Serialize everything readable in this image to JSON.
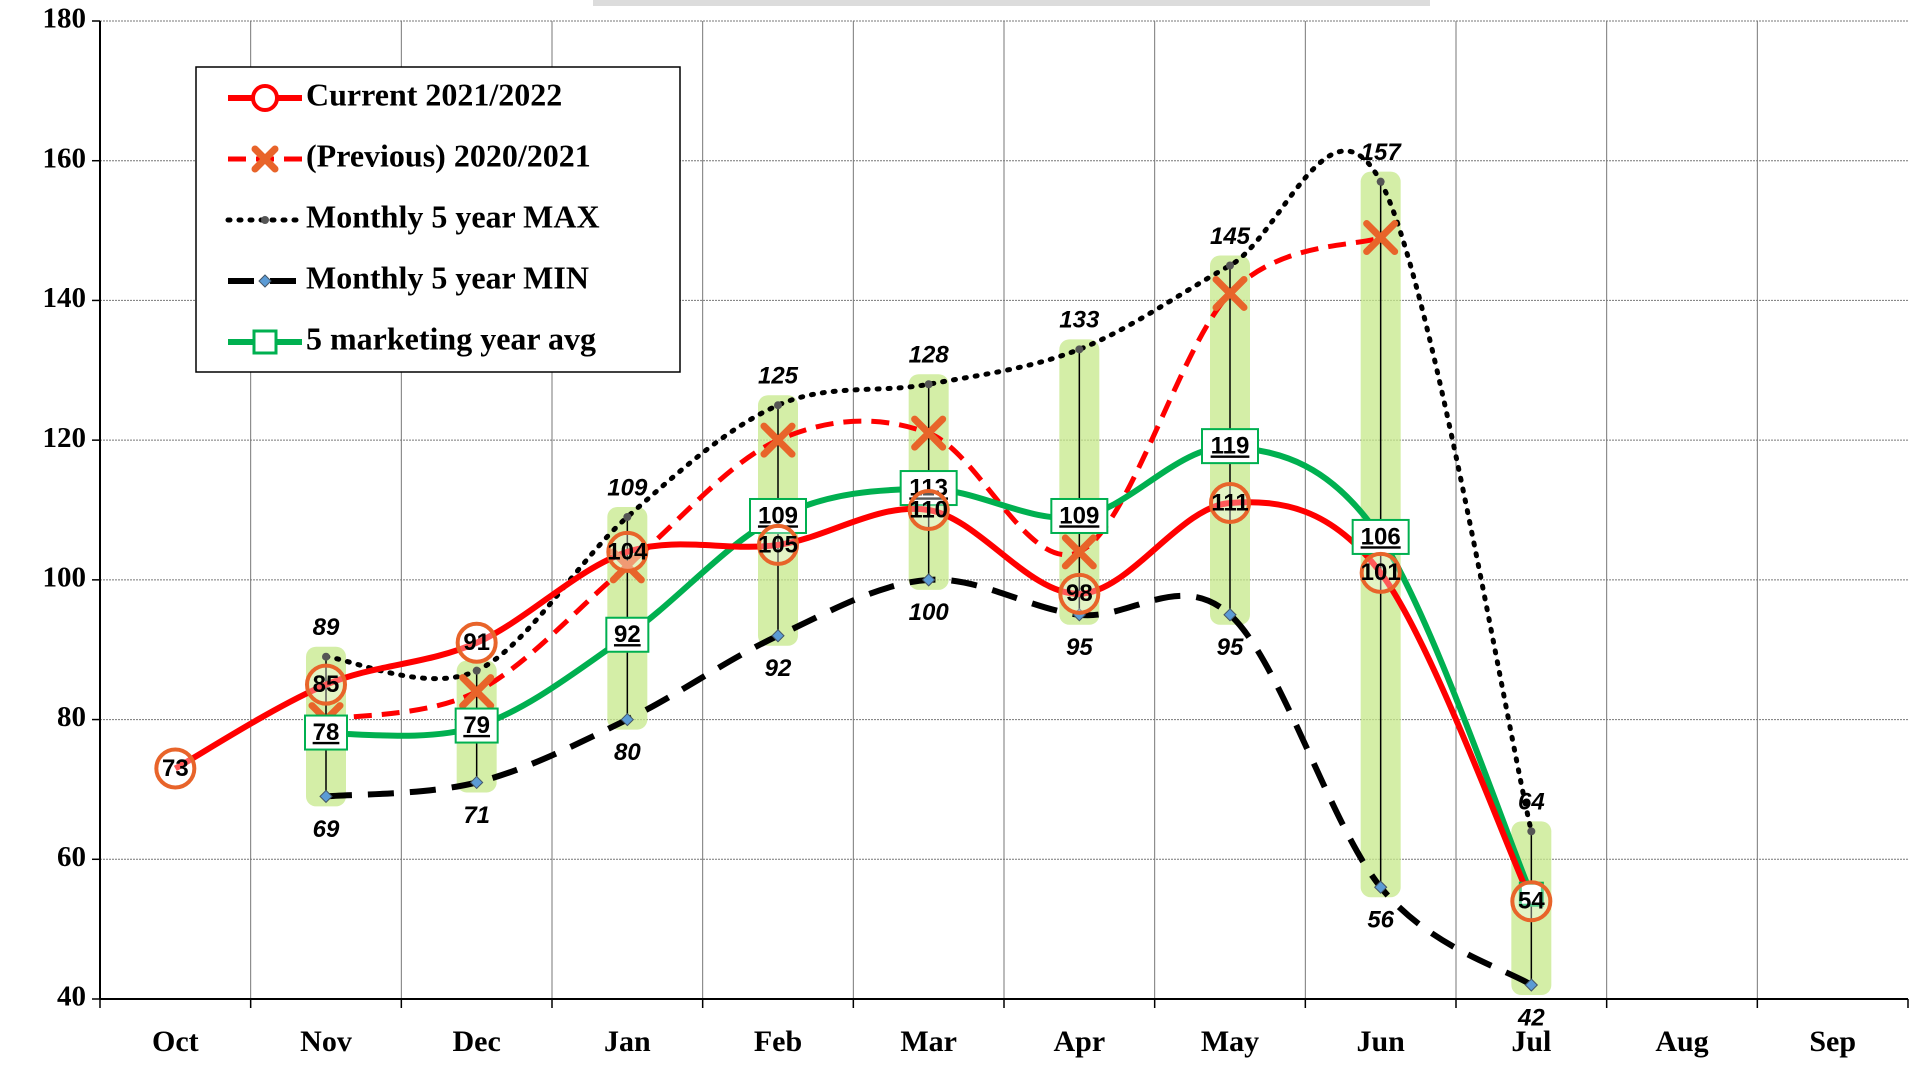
{
  "chart_data": {
    "type": "line",
    "categories": [
      "Oct",
      "Nov",
      "Dec",
      "Jan",
      "Feb",
      "Mar",
      "Apr",
      "May",
      "Jun",
      "Jul",
      "Aug",
      "Sep"
    ],
    "ylim": [
      40,
      180
    ],
    "yticks": [
      40,
      60,
      80,
      100,
      120,
      140,
      160,
      180
    ],
    "grid": true,
    "legend": "upper left",
    "range_color": "#c6e88a",
    "series": [
      {
        "name": "Current 2021/2022",
        "color": "#ff0000",
        "style": "solid",
        "marker": "circle",
        "label_position": "center",
        "values": [
          73,
          85,
          91,
          104,
          105,
          110,
          98,
          111,
          101,
          54,
          null,
          null
        ]
      },
      {
        "name": "(Previous)  2020/2021",
        "color": "#ff0000",
        "marker_color": "#e8642a",
        "style": "dashed",
        "marker": "x",
        "label_position": "none",
        "values": [
          null,
          80,
          84,
          102,
          120,
          121,
          104,
          141,
          149,
          null,
          null,
          null
        ]
      },
      {
        "name": "Monthly 5 year MAX",
        "color": "#000000",
        "style": "dotted",
        "marker": "dot",
        "label_position": "above",
        "values": [
          null,
          89,
          87,
          109,
          125,
          128,
          133,
          145,
          157,
          64,
          null,
          null
        ],
        "value_labels": [
          null,
          "89",
          null,
          "109",
          "125",
          "128",
          "133",
          "145",
          "157",
          "64",
          null,
          null
        ]
      },
      {
        "name": "Monthly 5 year MIN",
        "color": "#000000",
        "marker_color": "#5b9bd5",
        "style": "longdash",
        "marker": "diamond",
        "label_position": "below",
        "values": [
          null,
          69,
          71,
          80,
          92,
          100,
          95,
          95,
          56,
          42,
          null,
          null
        ]
      },
      {
        "name": "5 marketing year avg",
        "color": "#00b050",
        "style": "solid",
        "marker": "square",
        "label_position": "box",
        "values": [
          null,
          78,
          79,
          92,
          109,
          113,
          109,
          119,
          106,
          55,
          null,
          null
        ],
        "value_labels": [
          null,
          "78",
          "79",
          "92",
          "109",
          "113",
          "109",
          "119",
          "106",
          null,
          null,
          null
        ]
      }
    ]
  }
}
